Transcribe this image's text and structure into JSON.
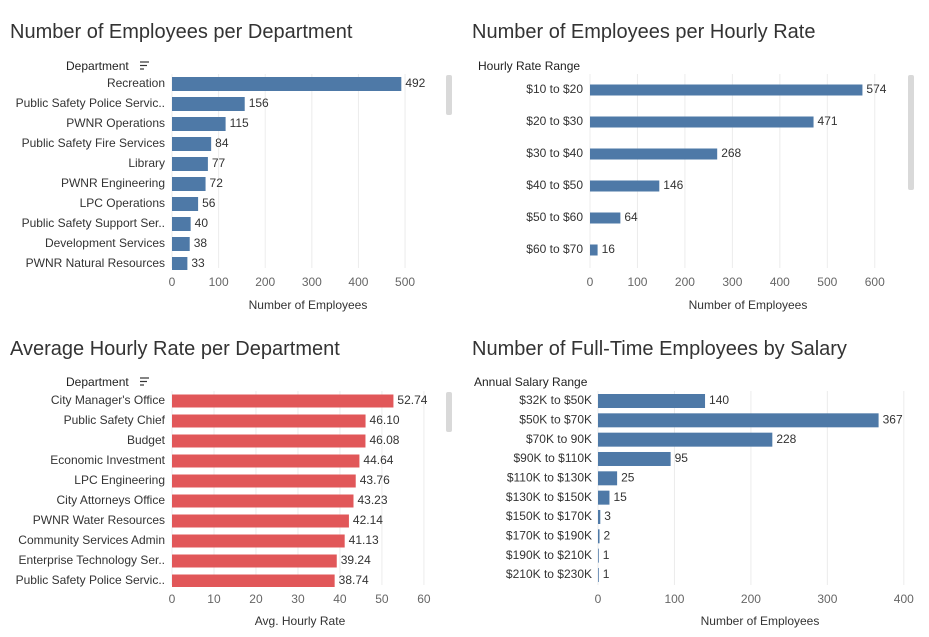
{
  "chart_data": [
    {
      "type": "bar",
      "orientation": "horizontal",
      "title": "Number of Employees per Department",
      "y_header": "Department",
      "x_label": "Number of Employees",
      "categories": [
        "Recreation",
        "Public Safety Police Servic..",
        "PWNR Operations",
        "Public Safety Fire Services",
        "Library",
        "PWNR Engineering",
        "LPC Operations",
        "Public Safety Support Ser..",
        "Development Services",
        "PWNR Natural Resources"
      ],
      "values": [
        492,
        156,
        115,
        84,
        77,
        72,
        56,
        40,
        38,
        33
      ],
      "color": "#4e79a7",
      "xlim": [
        0,
        590
      ],
      "xticks": [
        0,
        100,
        200,
        300,
        400,
        500
      ],
      "grid": true
    },
    {
      "type": "bar",
      "orientation": "horizontal",
      "title": "Number of Employees per Hourly Rate",
      "y_header": "Hourly Rate Range",
      "x_label": "Number of Employees",
      "categories": [
        "$10 to $20",
        "$20 to $30",
        "$30 to $40",
        "$40 to $50",
        "$50 to $60",
        "$60 to $70"
      ],
      "values": [
        574,
        471,
        268,
        146,
        64,
        16
      ],
      "color": "#4e79a7",
      "xlim": [
        0,
        670
      ],
      "xticks": [
        0,
        100,
        200,
        300,
        400,
        500,
        600
      ],
      "grid": true
    },
    {
      "type": "bar",
      "orientation": "horizontal",
      "title": "Average Hourly Rate per Department",
      "y_header": "Department",
      "x_label": "Avg. Hourly Rate",
      "categories": [
        "City Manager's Office",
        "Public Safety Chief",
        "Budget",
        "Economic Investment",
        "LPC Engineering",
        "City Attorneys Office",
        "PWNR Water Resources",
        "Community Services Admin",
        "Enterprise Technology Ser..",
        "Public Safety Police Servic.."
      ],
      "values": [
        52.74,
        46.1,
        46.08,
        44.64,
        43.76,
        43.23,
        42.14,
        41.13,
        39.24,
        38.74
      ],
      "value_labels": [
        "52.74",
        "46.10",
        "46.08",
        "44.64",
        "43.76",
        "43.23",
        "42.14",
        "41.13",
        "39.24",
        "38.74"
      ],
      "color": "#e15759",
      "xlim": [
        0,
        65.5
      ],
      "xticks": [
        0,
        10,
        20,
        30,
        40,
        50,
        60
      ],
      "grid": true
    },
    {
      "type": "bar",
      "orientation": "horizontal",
      "title": "Number of Full-Time Employees by Salary",
      "y_header": "Annual Salary Range",
      "x_label": "Number of Employees",
      "categories": [
        "$32K to $50K",
        "$50K to $70K",
        "$70K to 90K",
        "$90K to $110K",
        "$110K to $130K",
        "$130K to $150K",
        "$150K to $170K",
        "$170K to $190K",
        "$190K to $210K",
        "$210K to $230K"
      ],
      "values": [
        140,
        367,
        228,
        95,
        25,
        15,
        3,
        2,
        1,
        1
      ],
      "color": "#4e79a7",
      "xlim": [
        0,
        412
      ],
      "xticks": [
        0,
        100,
        200,
        300,
        400
      ],
      "grid": true
    }
  ]
}
